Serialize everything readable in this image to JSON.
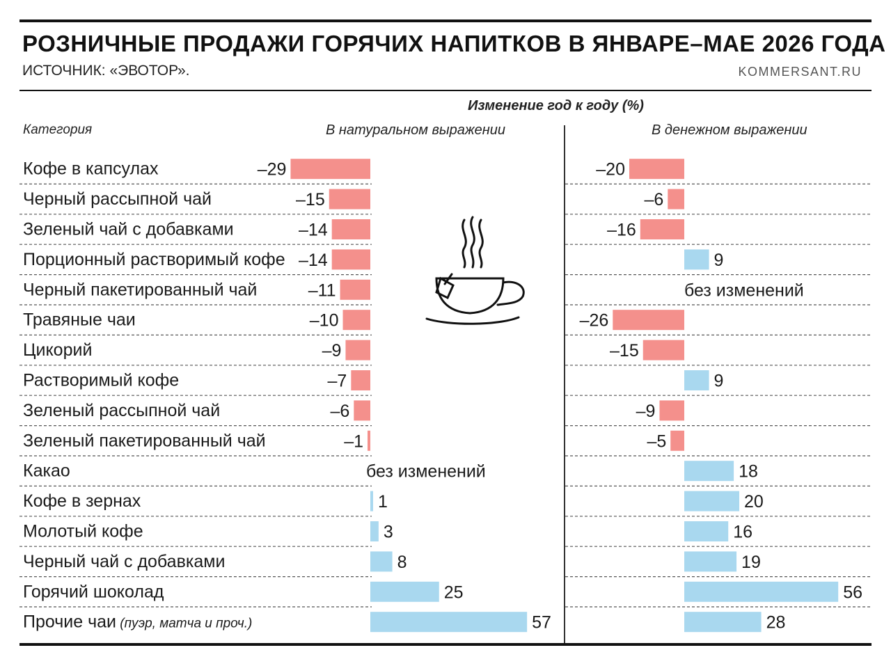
{
  "title": "РОЗНИЧНЫЕ ПРОДАЖИ ГОРЯЧИХ НАПИТКОВ В ЯНВАРЕ–МАЕ 2026 ГОДА",
  "source": "ИСТОЧНИК: «ЭВОТОР».",
  "brand": "KOMMERSANT.RU",
  "headers": {
    "main": "Изменение год к году (%)",
    "category": "Категория",
    "natural": "В натуральном выражении",
    "monetary": "В денежном выражении"
  },
  "icon": "tea-cup-icon",
  "colors": {
    "negative": "#f4908c",
    "positive": "#a9d8ef",
    "rule": "#111111"
  },
  "chart_data": {
    "type": "bar",
    "no_change_label": "без изменений",
    "categories": [
      "Кофе в капсулах",
      "Черный рассыпной чай",
      "Зеленый чай с добавками",
      "Порционный растворимый кофе",
      "Черный пакетированный чай",
      "Травяные чаи",
      "Цикорий",
      "Растворимый кофе",
      "Зеленый рассыпной чай",
      "Зеленый пакетированный чай",
      "Какао",
      "Кофе в зернах",
      "Молотый кофе",
      "Черный чай с добавками",
      "Горячий шоколад",
      "Прочие чаи"
    ],
    "category_notes": [
      "",
      "",
      "",
      "",
      "",
      "",
      "",
      "",
      "",
      "",
      "",
      "",
      "",
      "",
      "",
      "(пуэр, матча и проч.)"
    ],
    "series": [
      {
        "name": "В натуральном выражении",
        "values": [
          -29,
          -15,
          -14,
          -14,
          -11,
          -10,
          -9,
          -7,
          -6,
          -1,
          0,
          1,
          3,
          8,
          25,
          57
        ],
        "labels": [
          "–29",
          "–15",
          "–14",
          "–14",
          "–11",
          "–10",
          "–9",
          "–7",
          "–6",
          "–1",
          "без изменений",
          "1",
          "3",
          "8",
          "25",
          "57"
        ]
      },
      {
        "name": "В денежном выражении",
        "values": [
          -20,
          -6,
          -16,
          9,
          0,
          -26,
          -15,
          9,
          -9,
          -5,
          18,
          20,
          16,
          19,
          56,
          28
        ],
        "labels": [
          "–20",
          "–6",
          "–16",
          "9",
          "без изменений",
          "–26",
          "–15",
          "9",
          "–9",
          "–5",
          "18",
          "20",
          "16",
          "19",
          "56",
          "28"
        ]
      }
    ]
  }
}
